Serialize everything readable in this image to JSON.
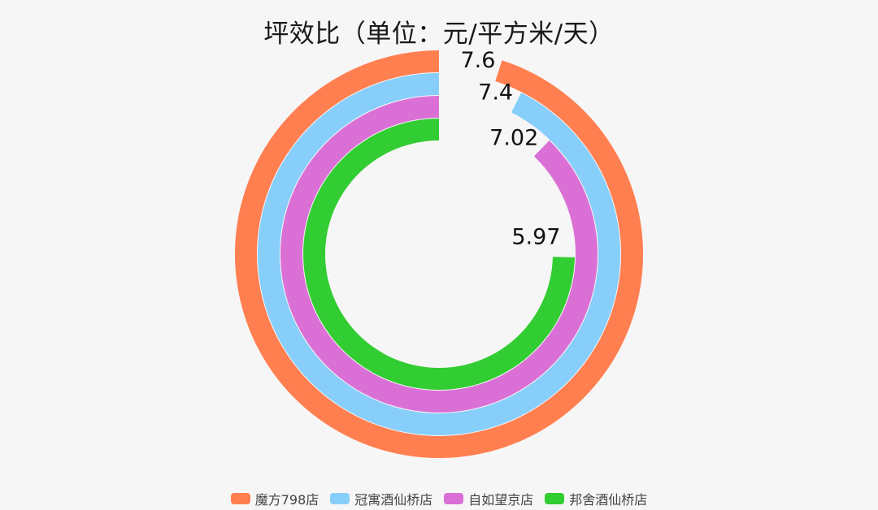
{
  "chart_data": {
    "type": "radial-bar",
    "title": "坪效比（单位：元/平方米/天）",
    "max_value": 8,
    "categories": [
      "魔方798店",
      "冠寓酒仙桥店",
      "自如望京店",
      "邦舍酒仙桥店"
    ],
    "values": [
      7.6,
      7.4,
      7.02,
      5.97
    ],
    "series": [
      {
        "name": "魔方798店",
        "value": 7.6,
        "label": "7.6",
        "color": "#ff7f50"
      },
      {
        "name": "冠寓酒仙桥店",
        "value": 7.4,
        "label": "7.4",
        "color": "#87cefa"
      },
      {
        "name": "自如望京店",
        "value": 7.02,
        "label": "7.02",
        "color": "#da70d6"
      },
      {
        "name": "邦舍酒仙桥店",
        "value": 5.97,
        "label": "5.97",
        "color": "#32cd32"
      }
    ],
    "legend_position": "bottom",
    "grid": false
  },
  "legend": {
    "items": [
      {
        "label": "魔方798店",
        "color": "#ff7f50"
      },
      {
        "label": "冠寓酒仙桥店",
        "color": "#87cefa"
      },
      {
        "label": "自如望京店",
        "color": "#da70d6"
      },
      {
        "label": "邦舍酒仙桥店",
        "color": "#32cd32"
      }
    ]
  }
}
